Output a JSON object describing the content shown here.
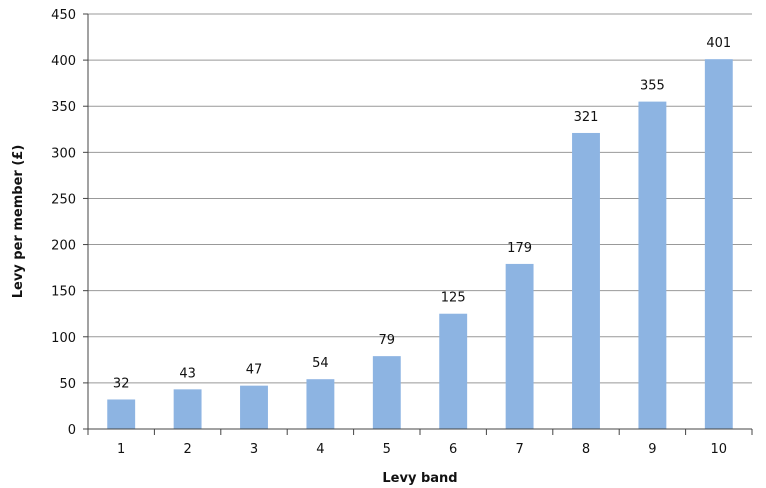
{
  "chart_data": {
    "type": "bar",
    "categories": [
      "1",
      "2",
      "3",
      "4",
      "5",
      "6",
      "7",
      "8",
      "9",
      "10"
    ],
    "values": [
      32,
      43,
      47,
      54,
      79,
      125,
      179,
      321,
      355,
      401
    ],
    "data_labels": [
      "32",
      "43",
      "47",
      "54",
      "79",
      "125",
      "179",
      "321",
      "355",
      "401"
    ],
    "xlabel": "Levy band",
    "ylabel": "Levy per member  (£)",
    "ylim": [
      0,
      450
    ],
    "yticks": [
      "0",
      "50",
      "100",
      "150",
      "200",
      "250",
      "300",
      "350",
      "400",
      "450"
    ],
    "grid": true,
    "legend": "none",
    "colors": {
      "bar": "#8db4e2",
      "grid": "#999999",
      "axis": "#444444",
      "text": "#111111"
    }
  }
}
